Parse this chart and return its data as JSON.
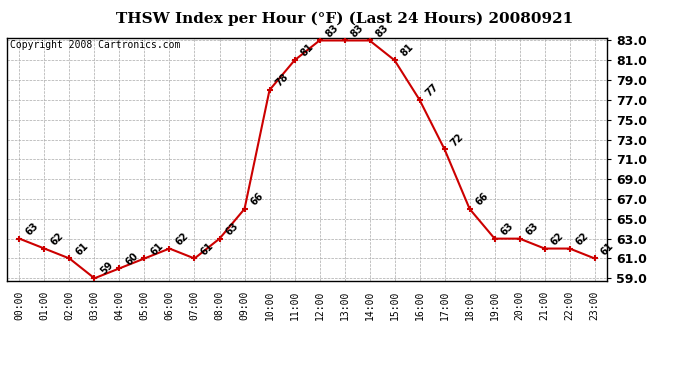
{
  "title": "THSW Index per Hour (°F) (Last 24 Hours) 20080921",
  "copyright": "Copyright 2008 Cartronics.com",
  "hours": [
    0,
    1,
    2,
    3,
    4,
    5,
    6,
    7,
    8,
    9,
    10,
    11,
    12,
    13,
    14,
    15,
    16,
    17,
    18,
    19,
    20,
    21,
    22,
    23
  ],
  "values": [
    63,
    62,
    61,
    59,
    60,
    61,
    62,
    61,
    63,
    66,
    78,
    81,
    83,
    83,
    83,
    81,
    77,
    72,
    66,
    63,
    63,
    62,
    62,
    61
  ],
  "ylim_min": 59.0,
  "ylim_max": 83.0,
  "yticks": [
    59.0,
    61.0,
    63.0,
    65.0,
    67.0,
    69.0,
    71.0,
    73.0,
    75.0,
    77.0,
    79.0,
    81.0,
    83.0
  ],
  "line_color": "#cc0000",
  "marker_color": "#cc0000",
  "bg_color": "#ffffff",
  "grid_color": "#aaaaaa",
  "title_fontsize": 11,
  "copyright_fontsize": 7,
  "label_fontsize": 7,
  "ytick_fontsize": 9,
  "xtick_fontsize": 7
}
